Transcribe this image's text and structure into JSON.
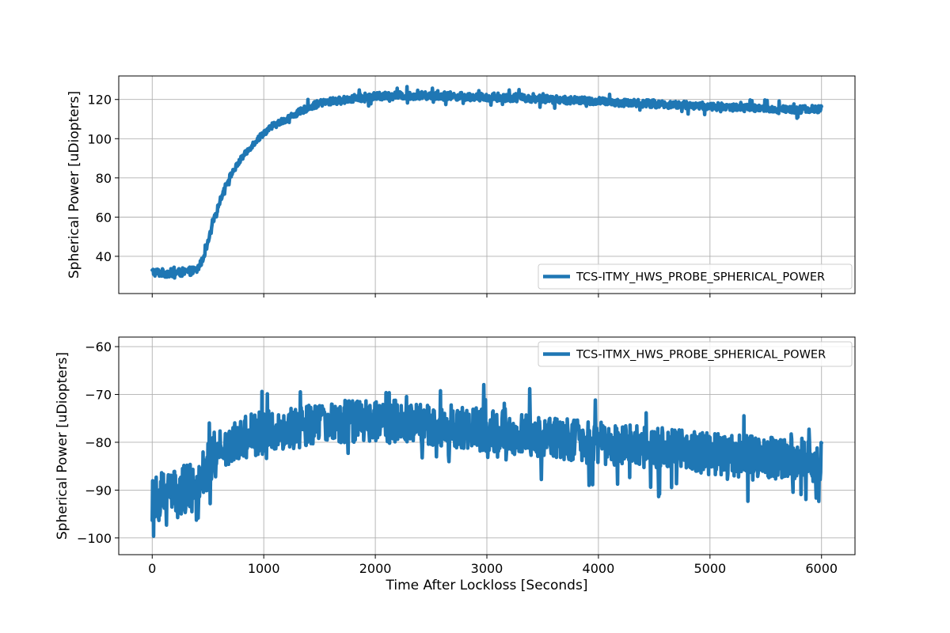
{
  "chart_data": [
    {
      "type": "line",
      "panel": "top",
      "title": "",
      "xlabel": "",
      "ylabel": "Spherical Power [uDiopters]",
      "xlim": [
        -300,
        6300
      ],
      "ylim": [
        21,
        132
      ],
      "xticks": [
        0,
        1000,
        2000,
        3000,
        4000,
        5000,
        6000
      ],
      "xtick_labels": [
        "",
        "",
        "",
        "",
        "",
        "",
        ""
      ],
      "yticks": [
        40,
        60,
        80,
        100,
        120
      ],
      "ytick_labels": [
        "40",
        "60",
        "80",
        "100",
        "120"
      ],
      "grid": true,
      "legend_position": "lower-right",
      "series": [
        {
          "name": "TCS-ITMY_HWS_PROBE_SPHERICAL_POWER",
          "color": "#1f77b4",
          "x": [
            0,
            100,
            200,
            300,
            400,
            450,
            500,
            550,
            600,
            650,
            700,
            800,
            900,
            1000,
            1100,
            1200,
            1300,
            1400,
            1500,
            1600,
            1700,
            1800,
            1900,
            2000,
            2200,
            2400,
            2600,
            2800,
            3000,
            3200,
            3400,
            3600,
            3800,
            4000,
            4200,
            4400,
            4600,
            4800,
            5000,
            5200,
            5400,
            5600,
            5800,
            6000
          ],
          "y": [
            32,
            31.5,
            31.5,
            32,
            33,
            38,
            47,
            58,
            67,
            75,
            81,
            90,
            97,
            103,
            107,
            110,
            113,
            116,
            118,
            119,
            119.5,
            120.5,
            121,
            121.5,
            122,
            122,
            122,
            121.5,
            121,
            121,
            120.5,
            120,
            119.5,
            119,
            118.5,
            118,
            117.5,
            117,
            116.5,
            116,
            115.5,
            115,
            115,
            115
          ],
          "noise_amplitude": [
            2.2,
            2.2,
            2.2,
            2.2,
            2,
            1.6,
            1.4,
            1.4,
            1.4,
            1.4,
            1.4,
            1.4,
            1.5,
            1.6,
            1.6,
            1.7,
            1.7,
            1.8,
            1.8,
            1.9,
            1.9,
            2,
            2,
            2,
            2,
            2,
            2,
            2,
            2,
            2,
            2,
            2,
            2,
            2,
            2,
            2,
            2,
            2,
            2,
            2,
            2,
            2,
            2,
            2
          ]
        }
      ]
    },
    {
      "type": "line",
      "panel": "bottom",
      "title": "",
      "xlabel": "Time After Lockloss [Seconds]",
      "ylabel": "Spherical Power [uDiopters]",
      "xlim": [
        -300,
        6300
      ],
      "ylim": [
        -103.5,
        -58
      ],
      "xticks": [
        0,
        1000,
        2000,
        3000,
        4000,
        5000,
        6000
      ],
      "xtick_labels": [
        "0",
        "1000",
        "2000",
        "3000",
        "4000",
        "5000",
        "6000"
      ],
      "yticks": [
        -100,
        -90,
        -80,
        -70,
        -60
      ],
      "ytick_labels": [
        "−100",
        "−90",
        "−80",
        "−70",
        "−60"
      ],
      "grid": true,
      "legend_position": "upper-right",
      "series": [
        {
          "name": "TCS-ITMX_HWS_PROBE_SPHERICAL_POWER",
          "color": "#1f77b4",
          "x": [
            0,
            100,
            200,
            300,
            400,
            500,
            600,
            700,
            800,
            1000,
            1200,
            1400,
            1600,
            1800,
            2000,
            2200,
            2400,
            2600,
            2800,
            3000,
            3200,
            3400,
            3600,
            3800,
            4000,
            4200,
            4400,
            4600,
            4800,
            5000,
            5200,
            5400,
            5600,
            5800,
            6000
          ],
          "y": [
            -91,
            -91,
            -90.5,
            -90,
            -88.5,
            -85,
            -82,
            -80,
            -79,
            -78,
            -77,
            -76.5,
            -76,
            -75.5,
            -75.5,
            -75.5,
            -76,
            -76.5,
            -77,
            -77.5,
            -78,
            -78.5,
            -79,
            -79.5,
            -80,
            -80.5,
            -81,
            -81.5,
            -82,
            -82.5,
            -83,
            -83,
            -83.5,
            -83.5,
            -84
          ],
          "noise_amplitude": [
            5.5,
            5.5,
            5.5,
            5.5,
            5.3,
            4.8,
            4.5,
            4.5,
            4.5,
            4.5,
            4.5,
            4.5,
            4.5,
            4.5,
            4.5,
            4.5,
            4.5,
            4.5,
            4.5,
            4.5,
            4.5,
            4.5,
            4.5,
            4.5,
            4.5,
            4.5,
            4.5,
            4.5,
            4.5,
            4.5,
            4.5,
            4.5,
            4.5,
            4.5,
            4.5
          ]
        }
      ]
    }
  ]
}
